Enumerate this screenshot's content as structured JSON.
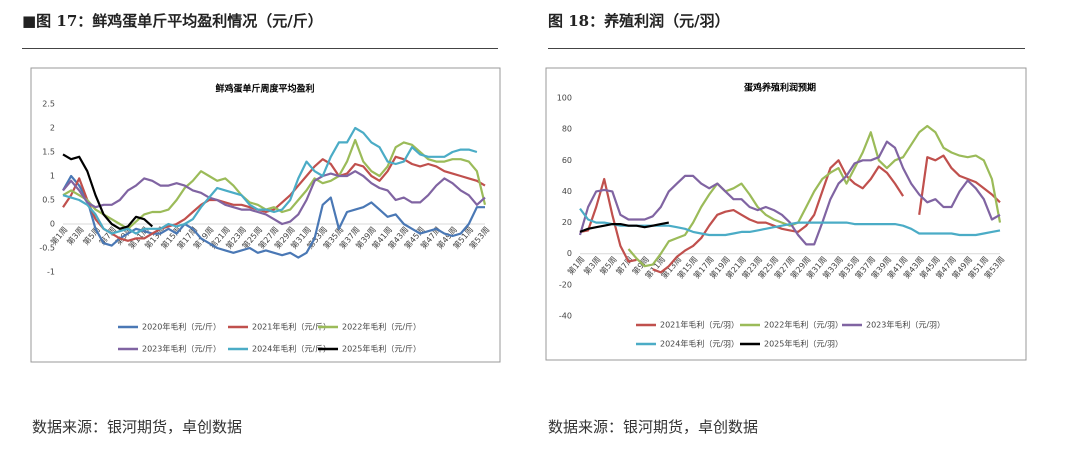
{
  "captions": [
    "■图 17：鲜鸡蛋单斤平均盈利情况（元/斤）",
    "图 18：养殖利润（元/羽）"
  ],
  "sources": [
    "数据来源：银河期货，卓创数据",
    "数据来源：银河期货，卓创数据"
  ],
  "chart_data": [
    {
      "type": "line",
      "title": "鲜鸡蛋单斤周度平均盈利",
      "categories": [
        "第1周",
        null,
        "第3周",
        null,
        "第5周",
        null,
        "第7周",
        null,
        "第9周",
        null,
        "第11周",
        null,
        "第13周",
        null,
        "第15周",
        null,
        "第17周",
        null,
        "第19周",
        null,
        "第21周",
        null,
        "第23周",
        null,
        "第25周",
        null,
        "第27周",
        null,
        "第29周",
        null,
        "第31周",
        null,
        "第33周",
        null,
        "第35周",
        null,
        "第37周",
        null,
        "第39周",
        null,
        "第41周",
        null,
        "第43周",
        null,
        "第45周",
        null,
        "第47周",
        null,
        "第49周",
        null,
        "第51周",
        null,
        "第53周"
      ],
      "ylim": [
        -1,
        2.5
      ],
      "yticks": [
        2.5,
        2,
        1.5,
        1,
        0.5,
        0,
        -0.5,
        -1
      ],
      "series": [
        {
          "name": "2020年毛利（元/斤）",
          "color": "#4a78b5",
          "values": [
            0.7,
            1.0,
            0.8,
            0.5,
            -0.1,
            -0.4,
            -0.45,
            -0.3,
            -0.2,
            -0.1,
            -0.15,
            -0.2,
            -0.2,
            -0.1,
            -0.2,
            0,
            -0.1,
            -0.3,
            -0.4,
            -0.5,
            -0.55,
            -0.6,
            -0.55,
            -0.5,
            -0.6,
            -0.55,
            -0.6,
            -0.65,
            -0.6,
            -0.7,
            -0.6,
            -0.3,
            0.4,
            0.55,
            -0.1,
            0.25,
            0.3,
            0.35,
            0.45,
            0.3,
            0.15,
            0.2,
            0,
            -0.1,
            -0.2,
            -0.15,
            -0.1,
            -0.2,
            -0.25,
            -0.2,
            0,
            0.35,
            0.35
          ]
        },
        {
          "name": "2021年毛利（元/斤）",
          "color": "#c0504d",
          "values": [
            0.35,
            0.6,
            0.95,
            0.5,
            0.1,
            -0.1,
            -0.2,
            -0.3,
            -0.35,
            -0.3,
            -0.3,
            -0.2,
            -0.1,
            -0.05,
            0,
            0.1,
            0.25,
            0.4,
            0.5,
            0.5,
            0.45,
            0.4,
            0.4,
            0.35,
            0.3,
            0.25,
            0.3,
            0.45,
            0.6,
            0.8,
            1.0,
            1.2,
            1.35,
            1.25,
            1.0,
            1.05,
            1.25,
            1.2,
            1.0,
            0.9,
            1.1,
            1.4,
            1.35,
            1.25,
            1.2,
            1.25,
            1.2,
            1.1,
            1.05,
            1.0,
            0.95,
            0.9,
            0.8
          ]
        },
        {
          "name": "2022年毛利（元/斤）",
          "color": "#9bbb59",
          "values": [
            0.6,
            0.7,
            0.6,
            0.5,
            0.3,
            0.2,
            0.1,
            0,
            -0.1,
            0.05,
            0.2,
            0.25,
            0.25,
            0.3,
            0.5,
            0.75,
            0.9,
            1.1,
            1.0,
            0.9,
            0.95,
            0.8,
            0.6,
            0.45,
            0.4,
            0.3,
            0.35,
            0.25,
            0.3,
            0.5,
            0.7,
            0.95,
            0.85,
            0.9,
            1.0,
            1.3,
            1.75,
            1.3,
            1.1,
            1.0,
            1.2,
            1.6,
            1.7,
            1.65,
            1.5,
            1.35,
            1.3,
            1.3,
            1.35,
            1.35,
            1.3,
            1.1,
            0.4
          ]
        },
        {
          "name": "2023年毛利（元/斤）",
          "color": "#8064a2",
          "values": [
            0.7,
            0.9,
            0.7,
            0.45,
            0.35,
            0.4,
            0.4,
            0.5,
            0.7,
            0.8,
            0.95,
            0.9,
            0.8,
            0.8,
            0.85,
            0.8,
            0.7,
            0.65,
            0.55,
            0.5,
            0.4,
            0.35,
            0.3,
            0.3,
            0.25,
            0.2,
            0.1,
            0,
            0.05,
            0.2,
            0.5,
            0.9,
            1.0,
            1.05,
            1.0,
            1.0,
            1.1,
            1.0,
            0.85,
            0.75,
            0.7,
            0.5,
            0.55,
            0.45,
            0.45,
            0.6,
            0.8,
            0.95,
            0.85,
            0.7,
            0.6,
            0.4,
            0.55
          ]
        },
        {
          "name": "2024年毛利（元/斤）",
          "color": "#4bacc6",
          "values": [
            0.6,
            0.55,
            0.5,
            0.4,
            0.2,
            -0.1,
            -0.2,
            -0.15,
            -0.1,
            -0.2,
            -0.1,
            -0.1,
            -0.1,
            0,
            -0.05,
            0,
            0.1,
            0.35,
            0.55,
            0.75,
            0.7,
            0.65,
            0.6,
            0.4,
            0.3,
            0.3,
            0.25,
            0.3,
            0.5,
            0.95,
            1.3,
            1.1,
            1.0,
            1.4,
            1.7,
            1.7,
            2.0,
            1.9,
            1.7,
            1.6,
            1.3,
            1.25,
            1.3,
            1.6,
            1.45,
            1.4,
            1.4,
            1.4,
            1.5,
            1.55,
            1.55,
            1.5,
            null
          ]
        },
        {
          "name": "2025年毛利（元/斤）",
          "color": "#000000",
          "values": [
            1.45,
            1.35,
            1.4,
            1.1,
            0.6,
            0.2,
            0,
            -0.1,
            -0.05,
            0.15,
            0.1,
            -0.05,
            null,
            null,
            null,
            null,
            null,
            null,
            null,
            null,
            null,
            null,
            null,
            null,
            null,
            null,
            null,
            null,
            null,
            null,
            null,
            null,
            null,
            null,
            null,
            null,
            null,
            null,
            null,
            null,
            null,
            null,
            null,
            null,
            null,
            null,
            null,
            null,
            null,
            null,
            null,
            null,
            null
          ]
        }
      ]
    },
    {
      "type": "line",
      "title": "蛋鸡养殖利润预期",
      "categories": [
        "第1周",
        null,
        "第3周",
        null,
        "第5周",
        null,
        "第7周",
        null,
        "第9周",
        null,
        "第11周",
        null,
        "第13周",
        null,
        "第15周",
        null,
        "第17周",
        null,
        "第19周",
        null,
        "第21周",
        null,
        "第23周",
        null,
        "第25周",
        null,
        "第27周",
        null,
        "第29周",
        null,
        "第31周",
        null,
        "第33周",
        null,
        "第35周",
        null,
        "第37周",
        null,
        "第39周",
        null,
        "第41周",
        null,
        "第43周",
        null,
        "第45周",
        null,
        "第47周",
        null,
        "第49周",
        null,
        "第51周",
        null,
        "第53周"
      ],
      "ylim": [
        -40,
        100
      ],
      "yticks": [
        100,
        80,
        60,
        40,
        20,
        0,
        -20,
        -40
      ],
      "series": [
        {
          "name": "2021年毛利（元/羽）",
          "color": "#c0504d",
          "values": [
            14,
            15,
            30,
            48,
            25,
            5,
            -5,
            -4,
            null,
            -10,
            -12,
            -8,
            -2,
            2,
            5,
            10,
            18,
            25,
            27,
            28,
            25,
            22,
            20,
            20,
            18,
            16,
            15,
            14,
            18,
            25,
            40,
            55,
            60,
            50,
            45,
            42,
            48,
            56,
            52,
            45,
            37,
            null,
            25,
            62,
            60,
            63,
            55,
            50,
            48,
            46,
            42,
            38,
            33
          ]
        },
        {
          "name": "2022年毛利（元/羽）",
          "color": "#9bbb59",
          "values": [
            null,
            null,
            null,
            null,
            null,
            null,
            3,
            -3,
            -8,
            -7,
            0,
            8,
            10,
            12,
            20,
            30,
            38,
            45,
            40,
            42,
            45,
            38,
            30,
            25,
            22,
            20,
            18,
            20,
            30,
            40,
            48,
            52,
            55,
            45,
            55,
            65,
            78,
            60,
            55,
            60,
            62,
            70,
            78,
            82,
            78,
            68,
            65,
            63,
            62,
            63,
            60,
            48,
            20
          ]
        },
        {
          "name": "2023年毛利（元/羽）",
          "color": "#8064a2",
          "values": [
            12,
            30,
            40,
            41,
            40,
            25,
            22,
            22,
            22,
            24,
            30,
            40,
            45,
            50,
            50,
            45,
            42,
            45,
            40,
            35,
            35,
            30,
            28,
            30,
            28,
            25,
            20,
            12,
            6,
            6,
            20,
            35,
            45,
            50,
            58,
            60,
            60,
            62,
            72,
            68,
            55,
            45,
            38,
            33,
            35,
            30,
            30,
            40,
            47,
            42,
            35,
            22,
            25
          ]
        },
        {
          "name": "2024年毛利（元/羽）",
          "color": "#4bacc6",
          "values": [
            29,
            22,
            20,
            20,
            19,
            18,
            18,
            18,
            18,
            18,
            18,
            18,
            17,
            16,
            14,
            13,
            12,
            12,
            12,
            13,
            14,
            14,
            15,
            16,
            17,
            18,
            19,
            20,
            20,
            20,
            20,
            20,
            20,
            20,
            19,
            19,
            19,
            19,
            19,
            19,
            18,
            16,
            13,
            13,
            13,
            13,
            13,
            12,
            12,
            12,
            13,
            14,
            15
          ]
        },
        {
          "name": "2025年毛利（元/羽）",
          "color": "#000000",
          "values": [
            14,
            16,
            17,
            18,
            19,
            19,
            18,
            18,
            17,
            18,
            19,
            20,
            null,
            null,
            null,
            null,
            null,
            null,
            null,
            null,
            null,
            null,
            null,
            null,
            null,
            null,
            null,
            null,
            null,
            null,
            null,
            null,
            null,
            null,
            null,
            null,
            null,
            null,
            null,
            null,
            null,
            null,
            null,
            null,
            null,
            null,
            null,
            null,
            null,
            null,
            null,
            null,
            null
          ]
        }
      ]
    }
  ]
}
